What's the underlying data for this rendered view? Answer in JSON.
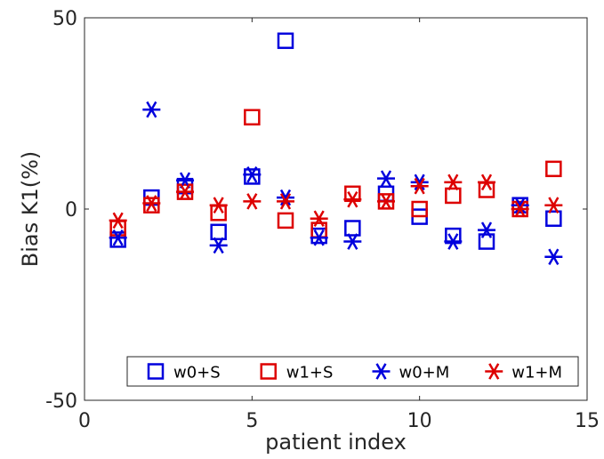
{
  "chart_data": {
    "type": "scatter",
    "xlabel": "patient index",
    "ylabel": "Bias K1(%)",
    "xlim": [
      0,
      15
    ],
    "ylim": [
      -50,
      50
    ],
    "xticks": [
      0,
      5,
      10,
      15
    ],
    "yticks": [
      -50,
      0,
      50
    ],
    "grid": false,
    "legend_position": "bottom",
    "series": [
      {
        "name": "w0+S",
        "marker": "square",
        "color": "#0000dd",
        "x": [
          1,
          2,
          3,
          4,
          5,
          6,
          7,
          8,
          9,
          10,
          11,
          12,
          13,
          14
        ],
        "y": [
          -8,
          3,
          6,
          -6,
          8.5,
          44,
          -7,
          -5,
          4,
          -2,
          -7,
          -8.5,
          1,
          -2.5
        ]
      },
      {
        "name": "w1+S",
        "marker": "square",
        "color": "#dd0000",
        "x": [
          1,
          2,
          3,
          4,
          5,
          6,
          7,
          8,
          9,
          10,
          11,
          12,
          13,
          14
        ],
        "y": [
          -5,
          1,
          4.5,
          -1,
          24,
          -3,
          -5.5,
          4,
          2,
          0,
          3.5,
          5,
          0,
          10.5
        ]
      },
      {
        "name": "w0+M",
        "marker": "asterisk",
        "color": "#0000dd",
        "x": [
          1,
          2,
          3,
          4,
          5,
          6,
          7,
          8,
          9,
          10,
          11,
          12,
          13,
          14
        ],
        "y": [
          -7.5,
          26,
          7.5,
          -9.5,
          9,
          3,
          -7.5,
          -8.5,
          8,
          7,
          -8.5,
          -5.5,
          1,
          -12.5
        ]
      },
      {
        "name": "w1+M",
        "marker": "asterisk",
        "color": "#dd0000",
        "x": [
          1,
          2,
          3,
          4,
          5,
          6,
          7,
          8,
          9,
          10,
          11,
          12,
          13,
          14
        ],
        "y": [
          -3,
          1.5,
          4.5,
          1,
          2,
          2,
          -2.5,
          2.5,
          2,
          6,
          7,
          7,
          0,
          1
        ]
      }
    ]
  }
}
